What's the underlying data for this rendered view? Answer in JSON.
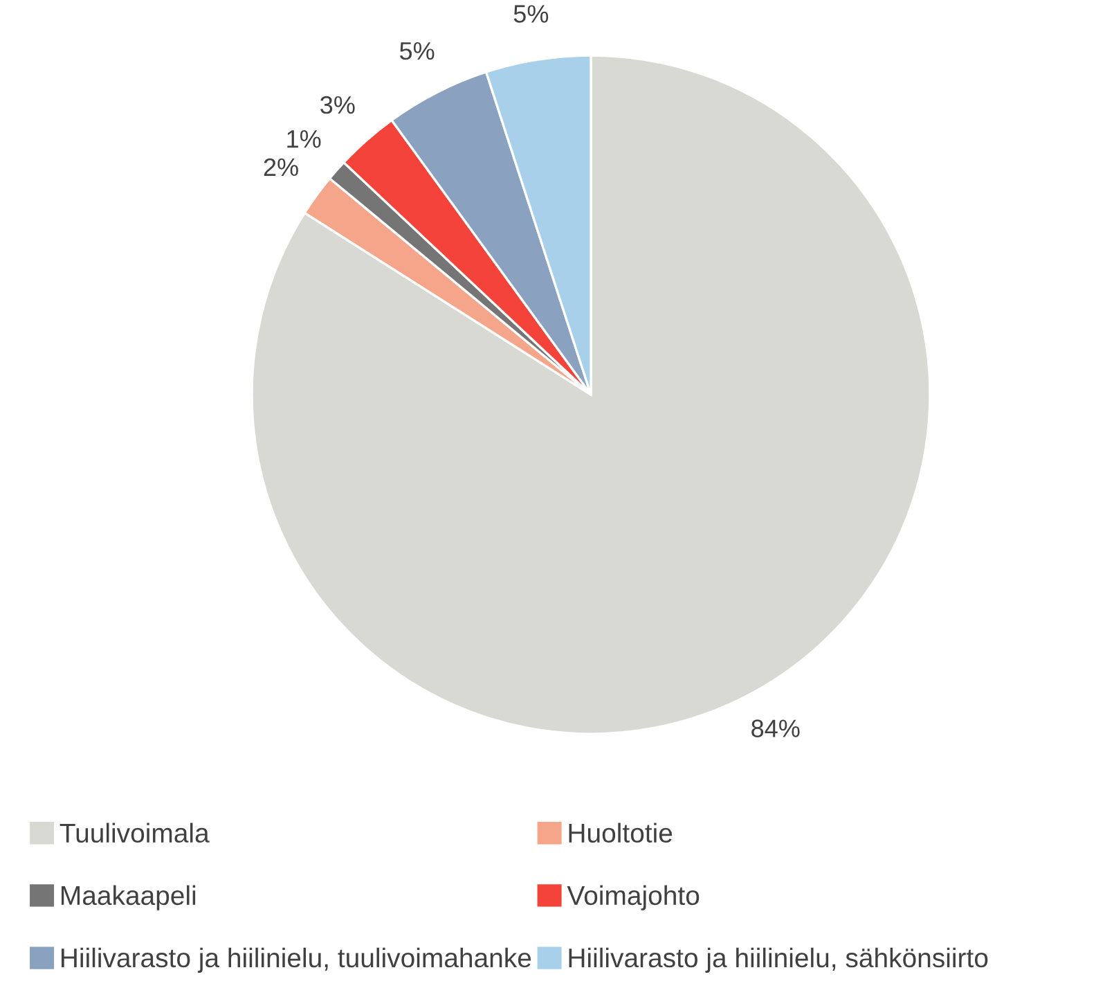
{
  "chart_data": {
    "type": "pie",
    "categories": [
      "Tuulivoimala",
      "Huoltotie",
      "Maakaapeli",
      "Voimajohto",
      "Hiilivarasto ja hiilinielu, tuulivoimahanke",
      "Hiilivarasto ja hiilinielu, sähkönsiirto"
    ],
    "values": [
      84,
      2,
      1,
      3,
      5,
      5
    ],
    "value_labels": [
      "84%",
      "2%",
      "1%",
      "3%",
      "5%",
      "5%"
    ],
    "colors": [
      "#d9d9d4",
      "#f4a58a",
      "#757575",
      "#f4433a",
      "#8aa2bf",
      "#a8d0ea"
    ],
    "legend": "bottom"
  }
}
